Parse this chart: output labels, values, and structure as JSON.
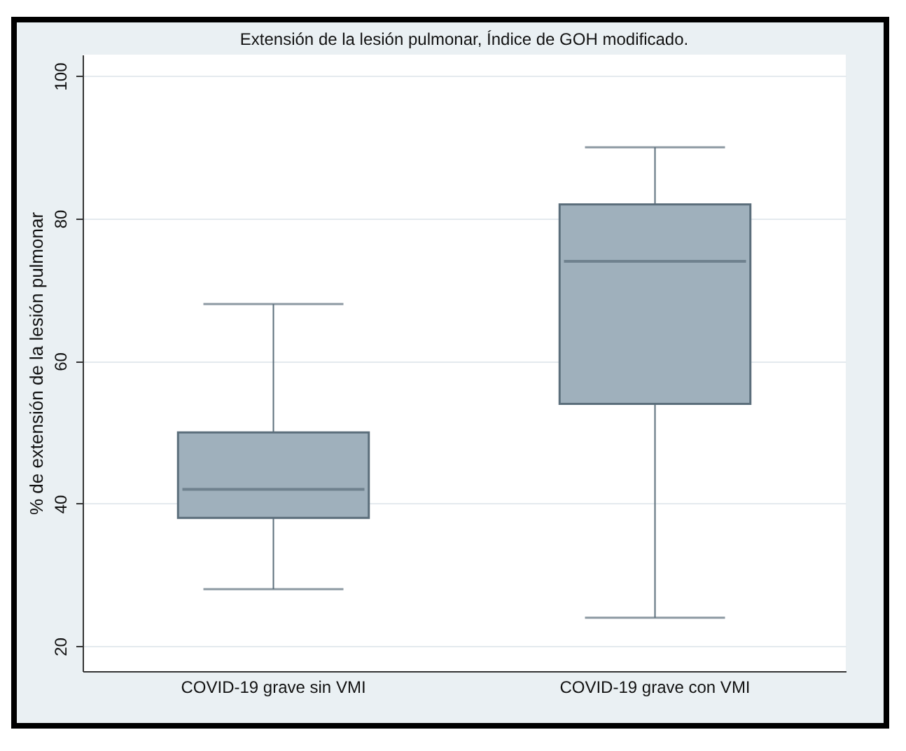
{
  "chart_data": {
    "type": "box",
    "title": "Extensión de la lesión pulmonar, Índice de GOH modificado.",
    "ylabel": "% de extensión de la lesión pulmonar",
    "categories": [
      "COVID-19 grave sin VMI",
      "COVID-19 grave con VMI"
    ],
    "series": [
      {
        "color": "#9fb0bc",
        "boxes": [
          {
            "low": 28,
            "q1": 38,
            "median": 42,
            "q3": 50,
            "high": 68
          },
          {
            "low": 24,
            "q1": 54,
            "median": 74,
            "q3": 82,
            "high": 90
          }
        ]
      }
    ],
    "ylim": [
      16.5,
      103
    ],
    "yticks": [
      20,
      40,
      60,
      80,
      100
    ],
    "grid": "y"
  }
}
